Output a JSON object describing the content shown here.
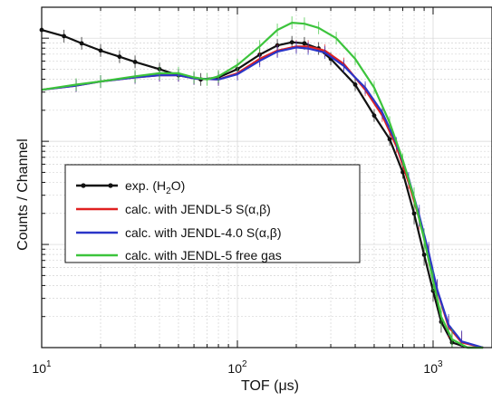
{
  "chart_data": {
    "type": "line",
    "xlabel": "TOF (μs)",
    "ylabel": "Counts / Channel",
    "x_scale": "log",
    "xlim": [
      10,
      2000
    ],
    "ylim_decades": [
      0,
      3.3
    ],
    "x_ticks": [
      {
        "value": 10,
        "base": "10",
        "exp": "1"
      },
      {
        "value": 100,
        "base": "10",
        "exp": "2"
      },
      {
        "value": 1000,
        "base": "10",
        "exp": "3"
      }
    ],
    "grid": true,
    "legend_position": "center-left",
    "series": [
      {
        "name": "exp. (H2O)",
        "legend_parts": [
          "exp. (H",
          "2",
          "O)"
        ],
        "color": "#111111",
        "style": "markers-line",
        "points": [
          [
            10,
            3.08
          ],
          [
            13,
            3.02
          ],
          [
            16,
            2.95
          ],
          [
            20,
            2.88
          ],
          [
            25,
            2.82
          ],
          [
            30,
            2.77
          ],
          [
            40,
            2.7
          ],
          [
            50,
            2.64
          ],
          [
            65,
            2.6
          ],
          [
            80,
            2.62
          ],
          [
            100,
            2.7
          ],
          [
            130,
            2.84
          ],
          [
            160,
            2.93
          ],
          [
            190,
            2.96
          ],
          [
            220,
            2.95
          ],
          [
            260,
            2.9
          ],
          [
            300,
            2.8
          ],
          [
            400,
            2.55
          ],
          [
            500,
            2.25
          ],
          [
            600,
            2.02
          ],
          [
            700,
            1.7
          ],
          [
            800,
            1.3
          ],
          [
            900,
            0.9
          ],
          [
            1000,
            0.55
          ],
          [
            1100,
            0.25
          ],
          [
            1250,
            0.05
          ],
          [
            1500,
            0.0
          ],
          [
            1800,
            0.0
          ]
        ]
      },
      {
        "name": "calc. with JENDL-5 S(α,β)",
        "legend_text": "calc. with JENDL-5 S(α,β)",
        "color": "#e02020",
        "style": "line",
        "points": [
          [
            10,
            2.5
          ],
          [
            15,
            2.54
          ],
          [
            20,
            2.58
          ],
          [
            30,
            2.62
          ],
          [
            40,
            2.64
          ],
          [
            50,
            2.64
          ],
          [
            60,
            2.61
          ],
          [
            80,
            2.6
          ],
          [
            100,
            2.66
          ],
          [
            130,
            2.8
          ],
          [
            160,
            2.88
          ],
          [
            200,
            2.92
          ],
          [
            230,
            2.92
          ],
          [
            280,
            2.88
          ],
          [
            350,
            2.75
          ],
          [
            450,
            2.5
          ],
          [
            550,
            2.25
          ],
          [
            650,
            1.95
          ],
          [
            750,
            1.6
          ],
          [
            850,
            1.25
          ],
          [
            950,
            0.9
          ],
          [
            1050,
            0.55
          ],
          [
            1200,
            0.2
          ],
          [
            1400,
            0.05
          ],
          [
            1800,
            0.0
          ]
        ]
      },
      {
        "name": "calc. with JENDL-4.0 S(α,β)",
        "legend_text": "calc. with JENDL-4.0 S(α,β)",
        "color": "#2a35c8",
        "style": "line",
        "points": [
          [
            10,
            2.5
          ],
          [
            15,
            2.54
          ],
          [
            20,
            2.58
          ],
          [
            30,
            2.62
          ],
          [
            40,
            2.64
          ],
          [
            50,
            2.64
          ],
          [
            60,
            2.61
          ],
          [
            80,
            2.6
          ],
          [
            100,
            2.65
          ],
          [
            130,
            2.78
          ],
          [
            160,
            2.87
          ],
          [
            200,
            2.91
          ],
          [
            230,
            2.9
          ],
          [
            280,
            2.86
          ],
          [
            350,
            2.73
          ],
          [
            450,
            2.52
          ],
          [
            550,
            2.28
          ],
          [
            650,
            1.98
          ],
          [
            750,
            1.64
          ],
          [
            850,
            1.28
          ],
          [
            950,
            0.92
          ],
          [
            1050,
            0.56
          ],
          [
            1200,
            0.22
          ],
          [
            1400,
            0.06
          ],
          [
            1800,
            0.0
          ]
        ]
      },
      {
        "name": "calc. with JENDL-5 free gas",
        "legend_text": "calc. with JENDL-5 free gas",
        "color": "#3cc43c",
        "style": "line",
        "points": [
          [
            10,
            2.5
          ],
          [
            15,
            2.55
          ],
          [
            20,
            2.58
          ],
          [
            30,
            2.63
          ],
          [
            40,
            2.66
          ],
          [
            50,
            2.66
          ],
          [
            60,
            2.62
          ],
          [
            70,
            2.6
          ],
          [
            80,
            2.63
          ],
          [
            100,
            2.74
          ],
          [
            130,
            2.92
          ],
          [
            160,
            3.08
          ],
          [
            190,
            3.15
          ],
          [
            220,
            3.14
          ],
          [
            260,
            3.1
          ],
          [
            320,
            3.0
          ],
          [
            400,
            2.8
          ],
          [
            500,
            2.52
          ],
          [
            600,
            2.18
          ],
          [
            700,
            1.82
          ],
          [
            800,
            1.45
          ],
          [
            900,
            1.05
          ],
          [
            1000,
            0.65
          ],
          [
            1100,
            0.3
          ],
          [
            1250,
            0.08
          ],
          [
            1500,
            0.0
          ],
          [
            1800,
            0.0
          ]
        ]
      }
    ]
  }
}
